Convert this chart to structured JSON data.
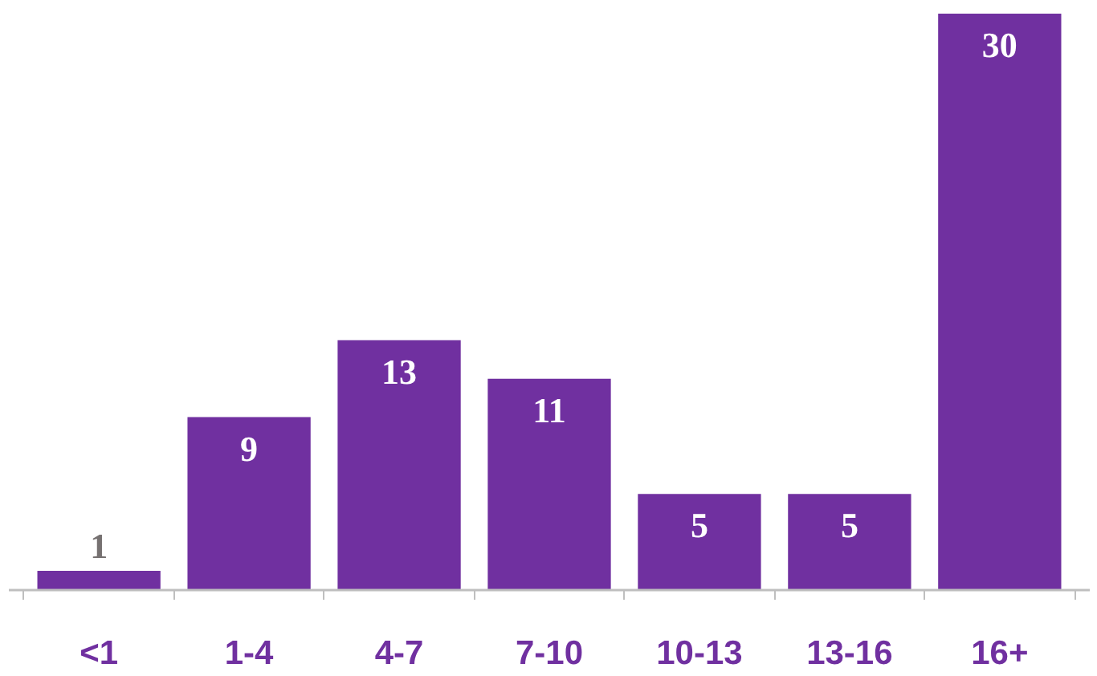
{
  "chart_data": {
    "type": "bar",
    "categories": [
      "<1",
      "1-4",
      "4-7",
      "7-10",
      "10-13",
      "13-16",
      "16+"
    ],
    "values": [
      1,
      9,
      13,
      11,
      5,
      5,
      30
    ],
    "color": "#7030a0",
    "data_labels": true,
    "grid": false
  }
}
